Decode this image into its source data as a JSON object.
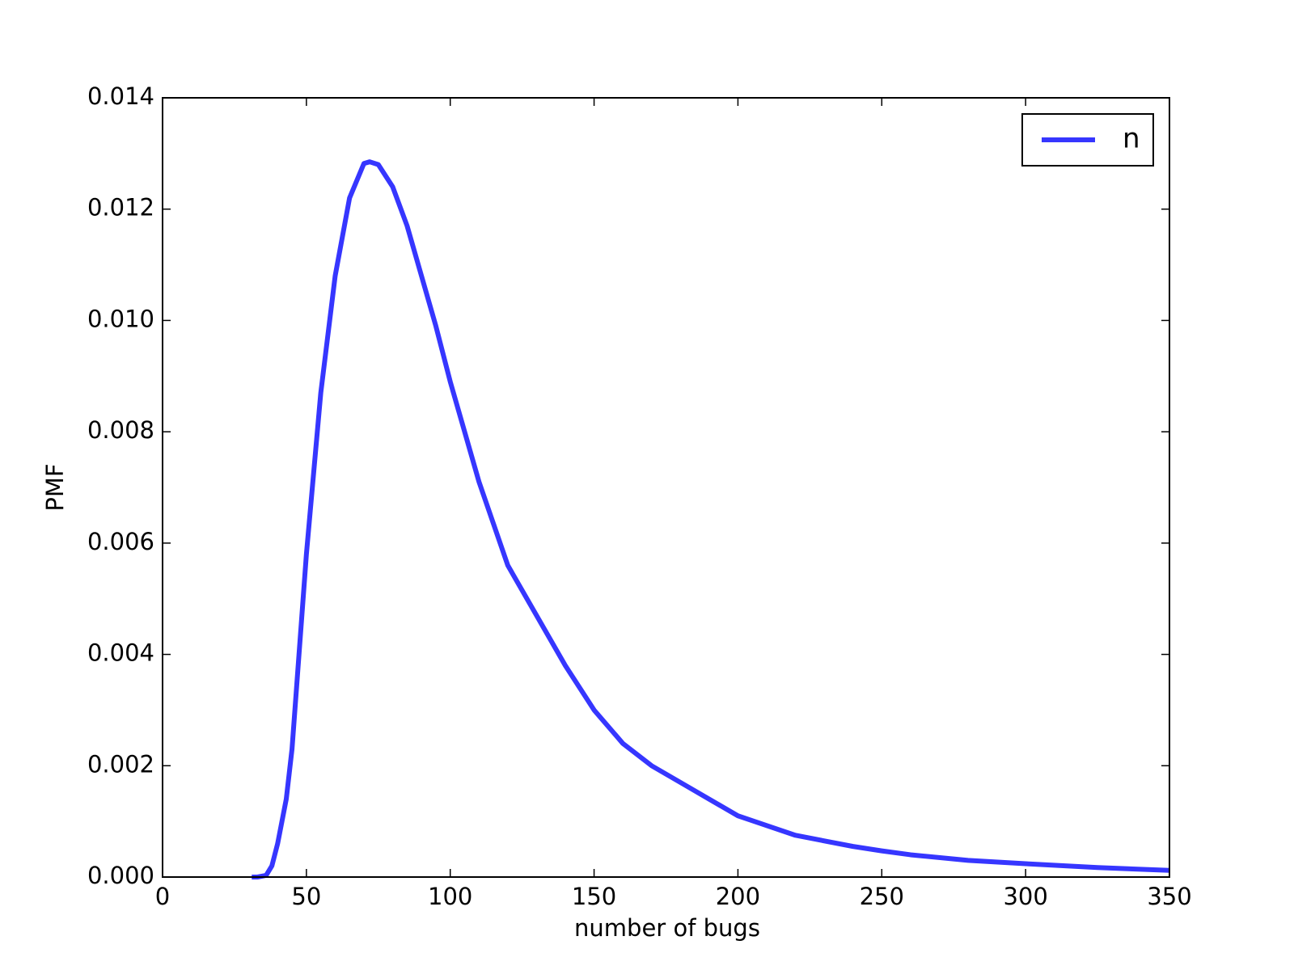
{
  "chart_data": {
    "type": "line",
    "x_label": "number of bugs",
    "y_label": "PMF",
    "x": [
      31,
      33,
      36,
      38,
      40,
      43,
      45,
      50,
      55,
      60,
      65,
      70,
      72,
      75,
      80,
      85,
      90,
      95,
      100,
      110,
      120,
      130,
      140,
      150,
      160,
      170,
      180,
      190,
      200,
      220,
      240,
      250,
      260,
      280,
      300,
      325,
      350
    ],
    "series": [
      {
        "name": "n",
        "color": "#3636ff",
        "values": [
          0,
          0,
          3e-05,
          0.0002,
          0.0006,
          0.0014,
          0.0023,
          0.0058,
          0.0087,
          0.0108,
          0.0122,
          0.01282,
          0.01285,
          0.0128,
          0.0124,
          0.0117,
          0.0108,
          0.0099,
          0.0089,
          0.0071,
          0.0056,
          0.0047,
          0.0038,
          0.003,
          0.0024,
          0.002,
          0.0017,
          0.0014,
          0.0011,
          0.00075,
          0.00055,
          0.00047,
          0.0004,
          0.0003,
          0.00024,
          0.00017,
          0.00012
        ]
      }
    ],
    "xlim": [
      0,
      350
    ],
    "xticks": [
      0,
      50,
      100,
      150,
      200,
      250,
      300,
      350
    ],
    "ylim": [
      0,
      0.014
    ],
    "yticks": [
      {
        "value": 0,
        "label": "0.000"
      },
      {
        "value": 0.002,
        "label": "0.002"
      },
      {
        "value": 0.004,
        "label": "0.004"
      },
      {
        "value": 0.006,
        "label": "0.006"
      },
      {
        "value": 0.008,
        "label": "0.008"
      },
      {
        "value": 0.01,
        "label": "0.010"
      },
      {
        "value": 0.012,
        "label": "0.012"
      },
      {
        "value": 0.014,
        "label": "0.014"
      }
    ],
    "grid": false,
    "legend": "upper right"
  }
}
